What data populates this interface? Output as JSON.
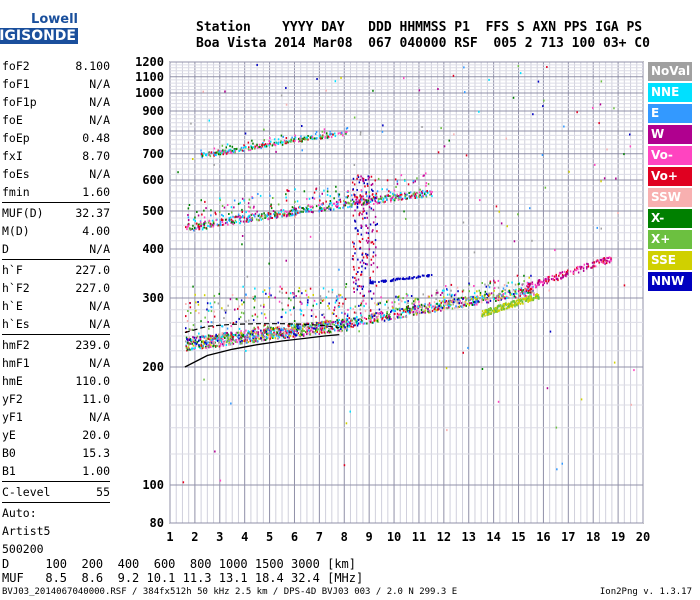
{
  "logo": {
    "line1": "Lowell",
    "line2": "DIGISONDE"
  },
  "header": {
    "line1": "Station    YYYY DAY   DDD HHMMSS P1  FFS S AXN PPS IGA PS",
    "line2": "Boa Vista 2014 Mar08  067 040000 RSF  005 2 713 100 03+ C0"
  },
  "params": [
    {
      "k": "foF2",
      "v": "8.100"
    },
    {
      "k": "foF1",
      "v": "N/A"
    },
    {
      "k": "foF1p",
      "v": "N/A"
    },
    {
      "k": "foE",
      "v": "N/A"
    },
    {
      "k": "foEp",
      "v": "0.48"
    },
    {
      "k": "fxI",
      "v": "8.70"
    },
    {
      "k": "foEs",
      "v": "N/A"
    },
    {
      "k": "fmin",
      "v": "1.60"
    },
    {
      "k": "MUF(D)",
      "v": "32.37",
      "sep": true
    },
    {
      "k": "M(D)",
      "v": "4.00"
    },
    {
      "k": "D",
      "v": "N/A"
    },
    {
      "k": "h`F",
      "v": "227.0",
      "sep": true
    },
    {
      "k": "h`F2",
      "v": "227.0"
    },
    {
      "k": "h`E",
      "v": "N/A"
    },
    {
      "k": "h`Es",
      "v": "N/A"
    },
    {
      "k": "hmF2",
      "v": "239.0",
      "sep": true
    },
    {
      "k": "hmF1",
      "v": "N/A"
    },
    {
      "k": "hmE",
      "v": "110.0"
    },
    {
      "k": "yF2",
      "v": "11.0"
    },
    {
      "k": "yF1",
      "v": "N/A"
    },
    {
      "k": "yE",
      "v": "20.0"
    },
    {
      "k": "B0",
      "v": "15.3"
    },
    {
      "k": "B1",
      "v": "1.00"
    },
    {
      "k": "C-level",
      "v": "55",
      "sep": true
    },
    {
      "k": "Auto:",
      "v": "",
      "sep": true
    },
    {
      "k": "Artist5",
      "v": ""
    },
    {
      "k": "500200",
      "v": ""
    }
  ],
  "legend": [
    {
      "label": "NoVal",
      "color": "#a0a0a0"
    },
    {
      "label": "NNE",
      "color": "#00e0ff"
    },
    {
      "label": "E",
      "color": "#3399ff"
    },
    {
      "label": "W",
      "color": "#b0008f"
    },
    {
      "label": "Vo-",
      "color": "#ff44c0"
    },
    {
      "label": "Vo+",
      "color": "#e00020"
    },
    {
      "label": "SSW",
      "color": "#f8b0b0"
    },
    {
      "label": "X-",
      "color": "#008000"
    },
    {
      "label": "X+",
      "color": "#6cc040"
    },
    {
      "label": "SSE",
      "color": "#d0d000"
    },
    {
      "label": "NNW",
      "color": "#0000c0"
    }
  ],
  "footer": {
    "row1": "D     100  200  400  600  800 1000 1500 3000 [km]",
    "row2": "MUF   8.5  8.6  9.2 10.1 11.3 13.1 18.4 32.4 [MHz]",
    "file": "BVJ03_2014067040000.RSF / 384fx512h 50 kHz 2.5 km / DPS-4D BVJ03 003 / 2.0 N 299.3 E",
    "version": "Ion2Png v. 1.3.17"
  },
  "chart_data": {
    "type": "scatter",
    "title": "",
    "xlabel": "",
    "ylabel": "",
    "xlim": [
      1,
      20
    ],
    "ylim": [
      80,
      1200
    ],
    "xticks": [
      1,
      2,
      3,
      4,
      5,
      6,
      7,
      8,
      9,
      10,
      11,
      12,
      13,
      14,
      15,
      16,
      17,
      18,
      19,
      20
    ],
    "yticks": [
      80,
      100,
      200,
      300,
      400,
      500,
      600,
      700,
      800,
      900,
      1000,
      1100,
      1200
    ],
    "y_scale": "log",
    "grid": true,
    "legend_position": "right",
    "traces": [
      {
        "name": "O-trace F2",
        "x_range": [
          1.6,
          8.1
        ],
        "h_range": [
          230,
          258
        ]
      },
      {
        "name": "2nd hop F2",
        "x_range": [
          1.6,
          11.5
        ],
        "h_range": [
          455,
          560
        ]
      },
      {
        "name": "3rd hop F2",
        "x_range": [
          2.2,
          8.1
        ],
        "h_range": [
          695,
          795
        ]
      },
      {
        "name": "X-trace F2",
        "x_range": [
          8.0,
          15.6
        ],
        "h_range": [
          260,
          315
        ]
      },
      {
        "name": "spread cluster",
        "x_range": [
          15.3,
          18.7
        ],
        "h_range": [
          320,
          380
        ]
      }
    ],
    "model_profile": {
      "x": [
        1.6,
        2.5,
        3.5,
        4.5,
        5.5,
        6.5,
        7.2,
        7.8
      ],
      "h": [
        200,
        214,
        222,
        228,
        233,
        237,
        240,
        242
      ]
    }
  }
}
